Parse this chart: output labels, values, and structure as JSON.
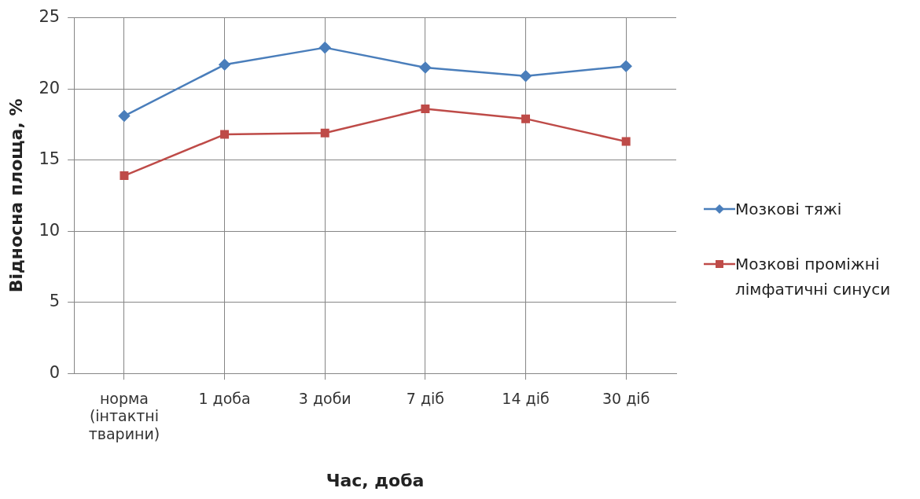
{
  "chart_data": {
    "type": "line",
    "xlabel": "Час, доба",
    "ylabel": "Відносна площа, %",
    "categories": [
      "норма (інтактні тварини)",
      "1 доба",
      "3 доби",
      "7 діб",
      "14 діб",
      "30 діб"
    ],
    "series": [
      {
        "name": "Мозкові тяжі",
        "color": "#4a7ebb",
        "marker": "diamond",
        "values": [
          18.1,
          21.7,
          22.9,
          21.5,
          20.9,
          21.6
        ]
      },
      {
        "name": "Мозкові проміжні лімфатичні синуси",
        "color": "#be4b48",
        "marker": "square",
        "values": [
          13.9,
          16.8,
          16.9,
          18.6,
          17.9,
          16.3
        ]
      }
    ],
    "ylim": [
      0,
      25
    ],
    "yticks": [
      0,
      5,
      10,
      15,
      20,
      25
    ],
    "grid": true,
    "legend": "right",
    "line_style": "solid"
  }
}
